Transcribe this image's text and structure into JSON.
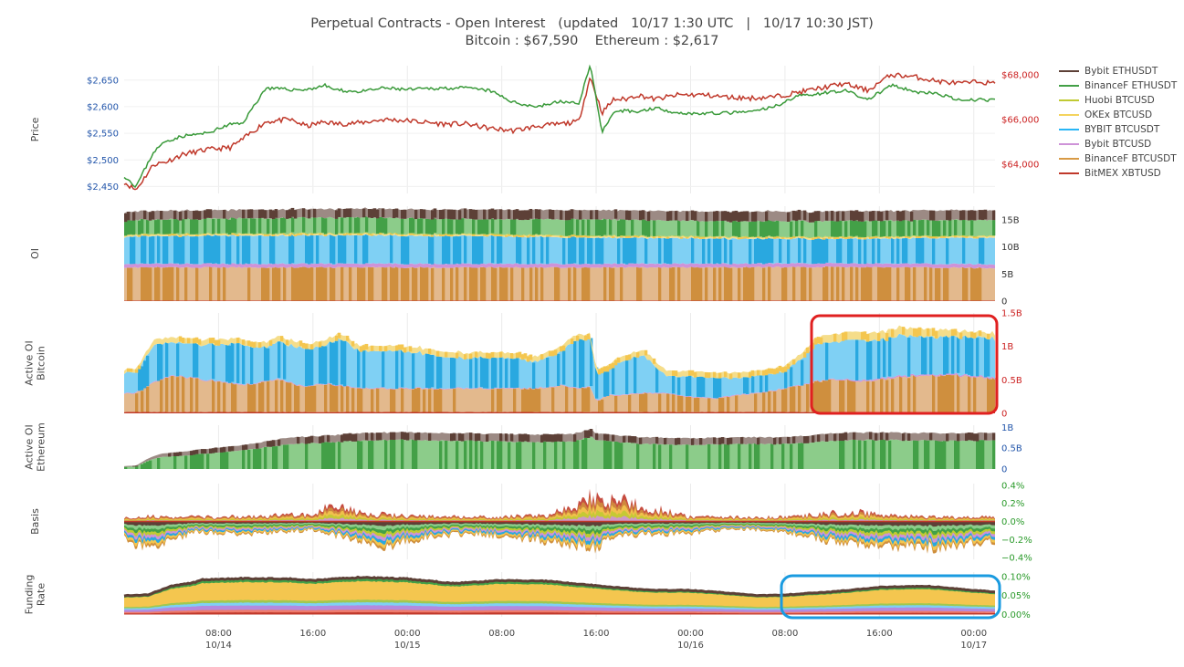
{
  "header": {
    "title_line1": "Perpetual Contracts - Open Interest   (updated   10/17 1:30 UTC   |   10/17 10:30 JST)",
    "title_line2": "Bitcoin : $67,590    Ethereum : $2,617"
  },
  "legend": [
    {
      "name": "Bybit ETHUSDT",
      "color": "#5d4037"
    },
    {
      "name": "BinanceF ETHUSDT",
      "color": "#43a047"
    },
    {
      "name": "Huobi BTCUSD",
      "color": "#c0ca33"
    },
    {
      "name": "OKEx BTCUSD",
      "color": "#f4d35e"
    },
    {
      "name": "BYBIT BTCUSDT",
      "color": "#29b6f6"
    },
    {
      "name": "Bybit BTCUSD",
      "color": "#ce93d8"
    },
    {
      "name": "BinanceF BTCUSDT",
      "color": "#d89a45"
    },
    {
      "name": "BitMEX XBTUSD",
      "color": "#c0392b"
    }
  ],
  "colors": {
    "bybit_ethusdt": "#5d4037",
    "bybit_ethusdt_light": "#9c8a84",
    "binancef_ethusdt": "#43a047",
    "binancef_ethusdt_light": "#8ccc8a",
    "huobi": "#c0ca33",
    "okex": "#f4c64f",
    "okex_light": "#f5dd8a",
    "bybit_btcusdt": "#29a8e0",
    "bybit_btcusdt_light": "#7fd0f4",
    "bybit_btcusd": "#ce93d8",
    "binancef_btcusdt": "#cf8f3e",
    "binancef_btcusdt_light": "#e3b98d",
    "bitmex": "#c0392b",
    "eth_price": "#3a9a3a",
    "btc_price": "#c0392b",
    "left_axis": "#2255aa",
    "right_axis_red": "#cc2222",
    "right_axis_green": "#2a9a2a",
    "right_axis_blue": "#2255aa",
    "highlight_red": "#e02020",
    "highlight_blue": "#1a9be0"
  },
  "chart_data": {
    "type": "area",
    "x_ticks": [
      {
        "time": "08:00",
        "date": "10/14"
      },
      {
        "time": "16:00",
        "date": ""
      },
      {
        "time": "00:00",
        "date": "10/15"
      },
      {
        "time": "08:00",
        "date": ""
      },
      {
        "time": "16:00",
        "date": ""
      },
      {
        "time": "00:00",
        "date": "10/16"
      },
      {
        "time": "08:00",
        "date": ""
      },
      {
        "time": "16:00",
        "date": ""
      },
      {
        "time": "00:00",
        "date": "10/17"
      }
    ],
    "x_start_hour": 0.0,
    "x_end_hour": 73.8,
    "x_tick_hours": [
      8,
      16,
      24,
      32,
      40,
      48,
      56,
      64,
      72
    ],
    "panels": [
      {
        "id": "price",
        "ylabel": "Price",
        "left_ticks": [
          "$2,650",
          "$2,600",
          "$2,550",
          "$2,500",
          "$2,450"
        ],
        "left_tick_values": [
          2650,
          2600,
          2550,
          2500,
          2450
        ],
        "right_ticks": [
          "$68,000",
          "$66,000",
          "$64,000"
        ],
        "right_tick_values": [
          68000,
          66000,
          64000
        ],
        "ylim_left": [
          2437,
          2677
        ],
        "ylim_right": [
          62700,
          68400
        ],
        "series": [
          {
            "name": "Ethereum price",
            "axis": "left",
            "x": [
              0,
              1,
              2.5,
              3.5,
              5,
              7,
              9,
              10,
              12,
              14,
              15.5,
              17,
              18,
              20,
              22,
              24,
              27,
              29,
              31,
              33,
              35,
              37,
              38.5,
              39.5,
              40.5,
              41.5,
              42.5,
              43.5,
              45,
              47,
              49,
              51,
              53,
              55,
              57,
              59,
              61,
              63,
              65,
              67,
              69,
              71,
              72.5,
              73.5
            ],
            "values": [
              2470,
              2450,
              2515,
              2535,
              2545,
              2550,
              2567,
              2568,
              2635,
              2632,
              2632,
              2640,
              2631,
              2628,
              2635,
              2632,
              2635,
              2635,
              2630,
              2608,
              2600,
              2610,
              2605,
              2678,
              2553,
              2587,
              2593,
              2590,
              2598,
              2588,
              2587,
              2588,
              2590,
              2599,
              2620,
              2625,
              2631,
              2613,
              2640,
              2628,
              2624,
              2610,
              2614,
              2612
            ]
          },
          {
            "name": "Bitcoin price",
            "axis": "right",
            "x": [
              0,
              1,
              2.5,
              3.5,
              5,
              7,
              9,
              10,
              12,
              14,
              15.5,
              17,
              18,
              20,
              22,
              24,
              27,
              29,
              31,
              33,
              35,
              37,
              38.5,
              39.5,
              40.5,
              41.5,
              42.5,
              43.5,
              45,
              47,
              49,
              51,
              53,
              55,
              57,
              59,
              61,
              63,
              65,
              67,
              69,
              71,
              72.5,
              73.5
            ],
            "values": [
              63200,
              62850,
              64000,
              64100,
              64450,
              64650,
              64750,
              65100,
              65900,
              66000,
              65700,
              65900,
              65800,
              65850,
              66000,
              65950,
              65800,
              65800,
              65600,
              65500,
              65700,
              65800,
              65900,
              67900,
              66300,
              66900,
              66900,
              67100,
              66900,
              67100,
              67100,
              67000,
              66950,
              67000,
              67200,
              67400,
              67600,
              67300,
              68000,
              67900,
              67700,
              67600,
              67700,
              67600
            ]
          }
        ]
      },
      {
        "id": "oi",
        "ylabel": "OI",
        "right_ticks": [
          "15B",
          "10B",
          "5B",
          "0"
        ],
        "right_tick_values": [
          15,
          10,
          5,
          0
        ],
        "ylim": [
          0,
          17.5
        ],
        "unit": "B",
        "stack_order": [
          "BitMEX XBTUSD",
          "BinanceF BTCUSDT",
          "Bybit BTCUSD",
          "BYBIT BTCUSDT",
          "OKEx BTCUSD",
          "Huobi BTCUSD",
          "BinanceF ETHUSDT",
          "Bybit ETHUSDT"
        ],
        "x": [
          0,
          10,
          20,
          30,
          40,
          50,
          60,
          73.8
        ],
        "series_values": [
          [
            0.1,
            0.1,
            0.1,
            0.1,
            0.1,
            0.1,
            0.1,
            0.1
          ],
          [
            6.1,
            6.1,
            6.1,
            6.1,
            6.1,
            6.1,
            6.2,
            6.0
          ],
          [
            0.7,
            0.7,
            0.7,
            0.7,
            0.7,
            0.7,
            0.7,
            0.7
          ],
          [
            5.0,
            5.2,
            5.2,
            5.1,
            4.8,
            4.6,
            4.5,
            4.9
          ],
          [
            0.3,
            0.3,
            0.3,
            0.3,
            0.3,
            0.3,
            0.3,
            0.3
          ],
          [
            0.1,
            0.1,
            0.1,
            0.1,
            0.1,
            0.1,
            0.1,
            0.1
          ],
          [
            2.6,
            2.8,
            2.9,
            2.7,
            3.0,
            2.8,
            2.9,
            2.9
          ],
          [
            1.6,
            1.6,
            1.6,
            1.8,
            1.7,
            1.8,
            1.8,
            1.8
          ]
        ]
      },
      {
        "id": "active_oi_btc",
        "ylabel": "Active OI Bitcoin",
        "right_ticks": [
          "1.5B",
          "1B",
          "0.5B",
          "0"
        ],
        "right_tick_values": [
          1.5,
          1.0,
          0.5,
          0
        ],
        "ylim": [
          0,
          1.5
        ],
        "unit": "B",
        "x": [
          0,
          1,
          2.5,
          4,
          6,
          8,
          10,
          12,
          13,
          15,
          17,
          18,
          20,
          24,
          28,
          32,
          35,
          37,
          38.5,
          39.5,
          40,
          41,
          42,
          44,
          46,
          48,
          50,
          52,
          54,
          56,
          57.5,
          58.5,
          60,
          62,
          64,
          66,
          68,
          70,
          72,
          73.8
        ],
        "stack_names": [
          "BitMEX XBTUSD",
          "BinanceF BTCUSDT",
          "Bybit BTCUSD",
          "BYBIT BTCUSDT",
          "OKEx BTCUSD"
        ],
        "stack_values": [
          [
            0.02,
            0.02,
            0.02,
            0.02,
            0.02,
            0.02,
            0.02,
            0.02,
            0.02,
            0.02,
            0.02,
            0.02,
            0.02,
            0.02,
            0.02,
            0.02,
            0.02,
            0.02,
            0.02,
            0.02,
            0.02,
            0.02,
            0.02,
            0.02,
            0.02,
            0.02,
            0.02,
            0.02,
            0.02,
            0.02,
            0.02,
            0.02,
            0.02,
            0.02,
            0.02,
            0.02,
            0.02,
            0.02,
            0.02,
            0.02
          ],
          [
            0.28,
            0.28,
            0.45,
            0.55,
            0.5,
            0.45,
            0.4,
            0.45,
            0.5,
            0.38,
            0.42,
            0.4,
            0.35,
            0.35,
            0.35,
            0.35,
            0.35,
            0.4,
            0.35,
            0.38,
            0.15,
            0.25,
            0.25,
            0.28,
            0.28,
            0.22,
            0.2,
            0.25,
            0.28,
            0.35,
            0.4,
            0.45,
            0.48,
            0.46,
            0.48,
            0.52,
            0.55,
            0.55,
            0.52,
            0.5
          ],
          [
            0.01,
            0.01,
            0.01,
            0.01,
            0.01,
            0.01,
            0.01,
            0.01,
            0.01,
            0.01,
            0.01,
            0.01,
            0.01,
            0.01,
            0.01,
            0.01,
            0.01,
            0.01,
            0.01,
            0.01,
            0.01,
            0.01,
            0.01,
            0.01,
            0.01,
            0.01,
            0.01,
            0.01,
            0.01,
            0.01,
            0.01,
            0.01,
            0.01,
            0.02,
            0.02,
            0.02,
            0.02,
            0.02,
            0.02,
            0.02
          ],
          [
            0.3,
            0.3,
            0.55,
            0.5,
            0.5,
            0.55,
            0.6,
            0.5,
            0.55,
            0.55,
            0.55,
            0.7,
            0.55,
            0.55,
            0.45,
            0.45,
            0.4,
            0.5,
            0.75,
            0.7,
            0.4,
            0.35,
            0.5,
            0.55,
            0.25,
            0.3,
            0.3,
            0.25,
            0.25,
            0.25,
            0.4,
            0.55,
            0.55,
            0.6,
            0.58,
            0.6,
            0.55,
            0.55,
            0.58,
            0.58
          ],
          [
            0.05,
            0.05,
            0.08,
            0.08,
            0.08,
            0.08,
            0.08,
            0.08,
            0.08,
            0.08,
            0.08,
            0.08,
            0.08,
            0.08,
            0.08,
            0.08,
            0.08,
            0.08,
            0.08,
            0.08,
            0.08,
            0.08,
            0.08,
            0.08,
            0.08,
            0.08,
            0.08,
            0.08,
            0.08,
            0.08,
            0.08,
            0.1,
            0.12,
            0.12,
            0.12,
            0.12,
            0.12,
            0.1,
            0.08,
            0.08
          ]
        ]
      },
      {
        "id": "active_oi_eth",
        "ylabel": "Active OI Ethereum",
        "right_ticks": [
          "1B",
          "0.5B",
          "0"
        ],
        "right_tick_values": [
          1.0,
          0.5,
          0
        ],
        "ylim": [
          0,
          1.05
        ],
        "unit": "B",
        "x": [
          0,
          1,
          2,
          3,
          5,
          8,
          10,
          12,
          14,
          16,
          20,
          24,
          28,
          32,
          36,
          38,
          39.5,
          40,
          42,
          44,
          48,
          52,
          56,
          58,
          60,
          64,
          68,
          72,
          73.8
        ],
        "stack_names": [
          "BinanceF ETHUSDT",
          "Bybit ETHUSDT"
        ],
        "stack_values": [
          [
            0.05,
            0.06,
            0.2,
            0.28,
            0.32,
            0.4,
            0.45,
            0.52,
            0.6,
            0.62,
            0.68,
            0.7,
            0.68,
            0.66,
            0.65,
            0.66,
            0.78,
            0.7,
            0.64,
            0.6,
            0.58,
            0.6,
            0.6,
            0.63,
            0.68,
            0.7,
            0.68,
            0.68,
            0.68
          ],
          [
            0.02,
            0.02,
            0.05,
            0.08,
            0.1,
            0.12,
            0.12,
            0.14,
            0.16,
            0.16,
            0.18,
            0.18,
            0.18,
            0.18,
            0.18,
            0.18,
            0.18,
            0.16,
            0.16,
            0.16,
            0.16,
            0.16,
            0.16,
            0.17,
            0.18,
            0.18,
            0.18,
            0.18,
            0.18
          ]
        ]
      },
      {
        "id": "basis",
        "ylabel": "Basis",
        "right_ticks": [
          "0.4%",
          "0.2%",
          "0.0%",
          "−0.2%",
          "−0.4%"
        ],
        "right_tick_values": [
          0.4,
          0.2,
          0.0,
          -0.2,
          -0.4
        ],
        "ylim": [
          -0.42,
          0.42
        ],
        "unit": "%",
        "pos_x": [
          0,
          8,
          16,
          18,
          20,
          24,
          32,
          36,
          40,
          48,
          56,
          62,
          64,
          70,
          73.8
        ],
        "pos_values": [
          0.06,
          0.05,
          0.08,
          0.22,
          0.1,
          0.06,
          0.05,
          0.08,
          0.3,
          0.05,
          0.05,
          0.12,
          0.07,
          0.05,
          0.05
        ],
        "neg_x": [
          0,
          2,
          6,
          10,
          16,
          18,
          22,
          26,
          30,
          34,
          36,
          38,
          40,
          41,
          44,
          48,
          52,
          56,
          60,
          64,
          68,
          72,
          73.8
        ],
        "neg_values": [
          -0.2,
          -0.3,
          -0.12,
          -0.14,
          -0.1,
          -0.16,
          -0.28,
          -0.16,
          -0.14,
          -0.2,
          -0.22,
          -0.26,
          -0.3,
          -0.18,
          -0.14,
          -0.14,
          -0.08,
          -0.12,
          -0.22,
          -0.26,
          -0.3,
          -0.24,
          -0.22
        ]
      },
      {
        "id": "funding_rate",
        "ylabel": "Funding Rate",
        "right_ticks": [
          "0.10%",
          "0.05%",
          "0.00%"
        ],
        "right_tick_values": [
          0.1,
          0.05,
          0.0
        ],
        "ylim": [
          -0.006,
          0.112
        ],
        "unit": "%",
        "x": [
          0,
          2,
          4,
          6,
          6.5,
          10,
          14,
          16,
          20,
          24,
          28,
          32,
          36,
          40,
          44,
          46,
          48,
          54,
          56,
          60,
          64,
          68,
          72,
          73.8
        ],
        "total_values": [
          0.05,
          0.052,
          0.075,
          0.085,
          0.092,
          0.095,
          0.094,
          0.09,
          0.098,
          0.094,
          0.082,
          0.09,
          0.088,
          0.076,
          0.065,
          0.064,
          0.064,
          0.05,
          0.052,
          0.06,
          0.072,
          0.075,
          0.064,
          0.06
        ],
        "layer_fractions": [
          0.06,
          0.07,
          0.12,
          0.08,
          0.07,
          0.5,
          0.1
        ]
      }
    ]
  }
}
